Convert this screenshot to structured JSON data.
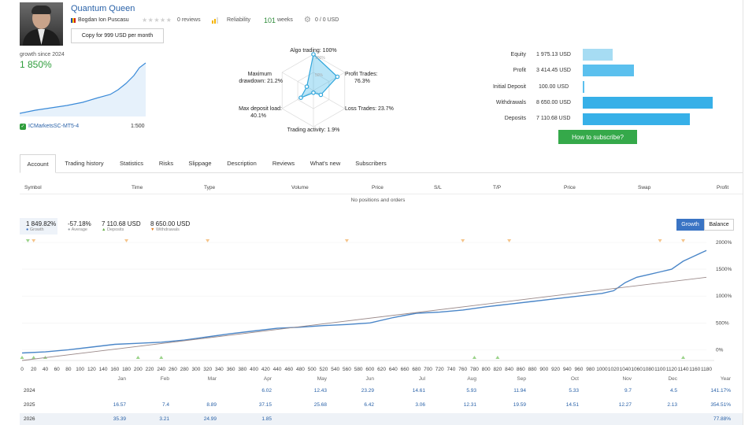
{
  "header": {
    "title": "Quantum Queen",
    "author": "Bogdan Ion Puscasu",
    "reviews": "0 reviews",
    "reliability": "Reliability",
    "weeks_value": "101",
    "weeks_label": "weeks",
    "copies": "0 / 0 USD",
    "copy_button": "Copy for 999 USD per month"
  },
  "growth_summary": {
    "since": "growth since 2024",
    "value": "1 850%",
    "broker": "ICMarketsSC-MT5-4",
    "leverage": "1:500"
  },
  "radar": {
    "algo": "Algo trading: 100%",
    "profit_trades": [
      "Profit Trades:",
      "76.3%"
    ],
    "loss_trades": "Loss Trades: 23.7%",
    "activity": "Trading activity: 1.9%",
    "deposit_load": [
      "Max deposit load:",
      "40.1%"
    ],
    "drawdown": [
      "Maximum",
      "drawdown: 21.2%"
    ],
    "rings": [
      "100%",
      "50%",
      "0%"
    ],
    "values": [
      1.0,
      0.763,
      0.237,
      0.019,
      0.401,
      0.212
    ]
  },
  "financials": [
    {
      "label": "Equity",
      "value": "1 975.13 USD",
      "amount": 1975.13,
      "color": "#a6dcf3"
    },
    {
      "label": "Profit",
      "value": "3 414.45 USD",
      "amount": 3414.45,
      "color": "#5bc0ee"
    },
    {
      "label": "Initial Deposit",
      "value": "100.00 USD",
      "amount": 100.0,
      "color": "#5bc0ee"
    },
    {
      "label": "Withdrawals",
      "value": "8 650.00 USD",
      "amount": 8650.0,
      "color": "#37b0e8"
    },
    {
      "label": "Deposits",
      "value": "7 110.68 USD",
      "amount": 7110.68,
      "color": "#37b0e8"
    }
  ],
  "subscribe_button": "How to subscribe?",
  "tabs": [
    "Account",
    "Trading history",
    "Statistics",
    "Risks",
    "Slippage",
    "Description",
    "Reviews",
    "What's new",
    "Subscribers"
  ],
  "positions": {
    "columns": [
      "Symbol",
      "Time",
      "Type",
      "Volume",
      "Price",
      "S/L",
      "T/P",
      "Price",
      "Swap",
      "Profit"
    ],
    "empty": "No positions and orders"
  },
  "chart_header": {
    "stats": [
      {
        "value": "1 849.82%",
        "label": "Growth",
        "color": "#3a74c4"
      },
      {
        "value": "-57.18%",
        "label": "Average",
        "color": "#9aa0a6"
      },
      {
        "value": "7 110.68 USD",
        "label": "Deposits",
        "color": "#6ab04c"
      },
      {
        "value": "8 650.00 USD",
        "label": "Withdrawals",
        "color": "#e67e22"
      }
    ],
    "growth_button": "Growth",
    "balance_button": "Balance"
  },
  "chart_data": {
    "type": "line",
    "x_ticks": [
      0,
      20,
      40,
      60,
      80,
      100,
      120,
      140,
      160,
      180,
      200,
      220,
      240,
      260,
      280,
      300,
      320,
      340,
      360,
      380,
      400,
      420,
      440,
      460,
      480,
      500,
      520,
      540,
      560,
      580,
      600,
      620,
      640,
      660,
      680,
      700,
      720,
      740,
      760,
      780,
      800,
      820,
      840,
      860,
      880,
      900,
      920,
      940,
      960,
      980,
      1000,
      1020,
      1040,
      1060,
      1080,
      1100,
      1120,
      1140,
      1160,
      1180
    ],
    "y_ticks": [
      "2000%",
      "1500%",
      "1000%",
      "500%",
      "0%"
    ],
    "y_values": [
      2000,
      1500,
      1000,
      500,
      0
    ],
    "ylim": [
      -200,
      2000
    ],
    "xlim": [
      0,
      1180
    ],
    "series": [
      {
        "name": "Growth",
        "color": "#4a86c8",
        "x": [
          0,
          40,
          80,
          120,
          160,
          200,
          240,
          280,
          320,
          360,
          400,
          440,
          480,
          520,
          560,
          600,
          640,
          680,
          720,
          760,
          800,
          840,
          880,
          920,
          960,
          1000,
          1020,
          1040,
          1060,
          1080,
          1100,
          1120,
          1140,
          1160,
          1180
        ],
        "y": [
          -60,
          -40,
          0,
          50,
          100,
          120,
          140,
          180,
          240,
          300,
          350,
          400,
          420,
          450,
          470,
          500,
          600,
          680,
          700,
          740,
          800,
          850,
          900,
          950,
          1000,
          1050,
          1100,
          1250,
          1350,
          1400,
          1450,
          1500,
          1650,
          1750,
          1850
        ]
      },
      {
        "name": "Trend",
        "color": "#9b8a8a",
        "x": [
          0,
          1180
        ],
        "y": [
          -200,
          1350
        ]
      }
    ],
    "month_labels": [
      "Jan",
      "Feb",
      "Mar",
      "Apr",
      "May",
      "Jun",
      "Jul",
      "Aug",
      "Sep",
      "Oct",
      "Nov",
      "Dec",
      "Year"
    ]
  },
  "monthly": [
    {
      "year": "2024",
      "values": [
        "",
        "",
        "",
        "6.02",
        "12.43",
        "23.29",
        "14.61",
        "5.93",
        "11.94",
        "5.33",
        "9.7",
        "4.5",
        "141.17%"
      ]
    },
    {
      "year": "2025",
      "values": [
        "16.57",
        "7.4",
        "8.89",
        "37.15",
        "25.68",
        "6.42",
        "3.06",
        "12.31",
        "19.59",
        "14.51",
        "12.27",
        "2.13",
        "354.51%"
      ]
    },
    {
      "year": "2026",
      "values": [
        "35.39",
        "3.21",
        "24.99",
        "1.85",
        "",
        "",
        "",
        "",
        "",
        "",
        "",
        "",
        "77.88%"
      ]
    }
  ]
}
